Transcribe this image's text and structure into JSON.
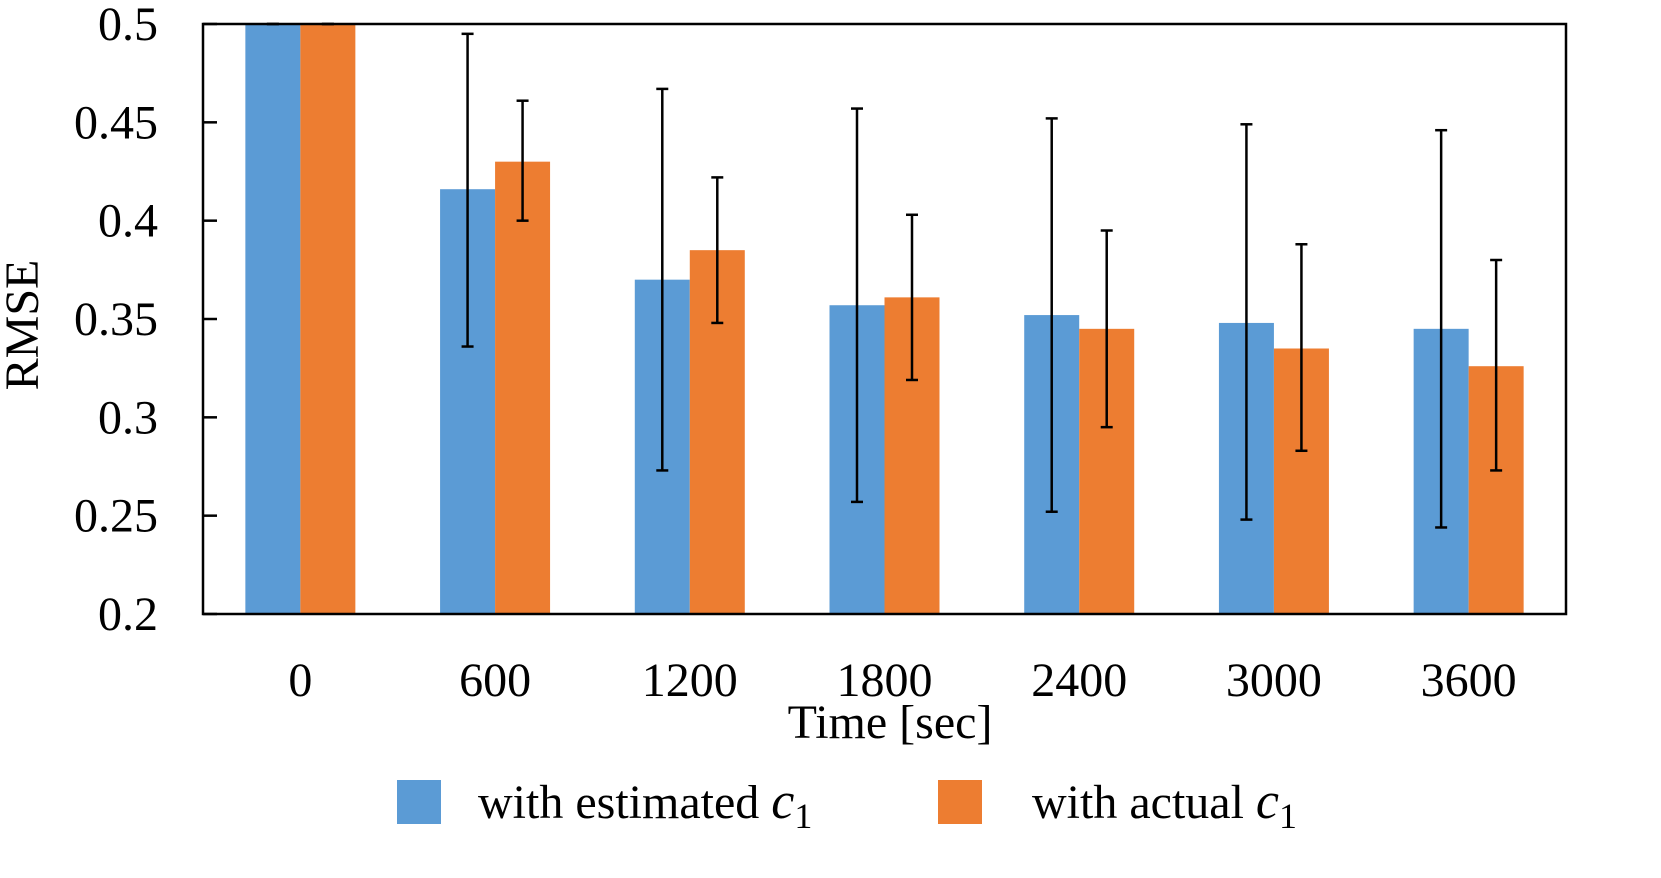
{
  "chart_data": {
    "type": "bar",
    "title": "",
    "xlabel": "Time [sec]",
    "ylabel": "RMSE",
    "ylim": [
      0.2,
      0.5
    ],
    "yticks": [
      "0.2",
      "0.25",
      "0.3",
      "0.35",
      "0.4",
      "0.45",
      "0.5"
    ],
    "categories": [
      "0",
      "600",
      "1200",
      "1800",
      "2400",
      "3000",
      "3600"
    ],
    "series": [
      {
        "name": "with estimated c1",
        "legend_text": "with estimated ",
        "legend_math": "c",
        "legend_sub": "1",
        "color": "#5B9BD5",
        "values": [
          0.5,
          0.416,
          0.37,
          0.357,
          0.352,
          0.348,
          0.345
        ],
        "err_low": [
          0.5,
          0.336,
          0.273,
          0.257,
          0.252,
          0.248,
          0.244
        ],
        "err_high": [
          0.5,
          0.495,
          0.467,
          0.457,
          0.452,
          0.449,
          0.446
        ]
      },
      {
        "name": "with actual c1",
        "legend_text": "with actual ",
        "legend_math": "c",
        "legend_sub": "1",
        "color": "#ED7D31",
        "values": [
          0.5,
          0.43,
          0.385,
          0.361,
          0.345,
          0.335,
          0.326
        ],
        "err_low": [
          0.5,
          0.4,
          0.348,
          0.319,
          0.295,
          0.283,
          0.273
        ],
        "err_high": [
          0.5,
          0.461,
          0.422,
          0.403,
          0.395,
          0.388,
          0.38
        ]
      }
    ],
    "legend_position": "bottom-center"
  }
}
